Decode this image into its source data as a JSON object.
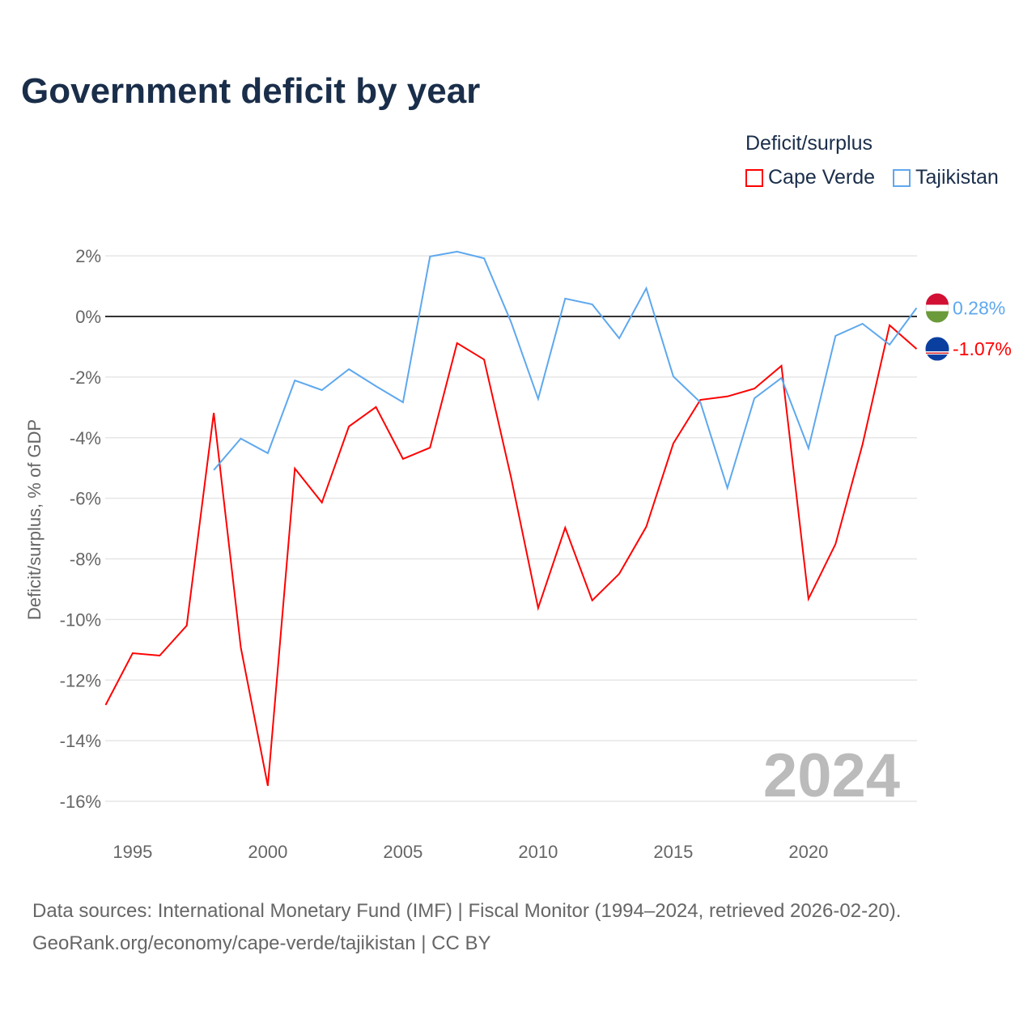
{
  "chart_data": {
    "type": "line",
    "title": "Government deficit by year",
    "ylabel": "Deficit/surplus, % of GDP",
    "xlabel": "",
    "legend_title": "Deficit/surplus",
    "ylim": [
      -16.5,
      2.5
    ],
    "xlim": [
      1994,
      2024
    ],
    "yticks": [
      2,
      0,
      -2,
      -4,
      -6,
      -8,
      -10,
      -12,
      -14,
      -16
    ],
    "ytick_labels": [
      "2%",
      "0%",
      "-2%",
      "-4%",
      "-6%",
      "-8%",
      "-10%",
      "-12%",
      "-14%",
      "-16%"
    ],
    "xticks": [
      1995,
      2000,
      2005,
      2010,
      2015,
      2020
    ],
    "xtick_labels": [
      "1995",
      "2000",
      "2005",
      "2010",
      "2015",
      "2020"
    ],
    "year_watermark": "2024",
    "series": [
      {
        "name": "Cape Verde",
        "color": "#ff0000",
        "end_label": "-1.07%",
        "start_year": 1994,
        "values": [
          -12.82,
          -11.11,
          -11.19,
          -10.2,
          -3.18,
          -10.92,
          -15.49,
          -5.02,
          -6.14,
          -3.63,
          -2.99,
          -4.7,
          -4.33,
          -0.88,
          -1.42,
          -5.32,
          -9.62,
          -6.97,
          -9.37,
          -8.49,
          -6.94,
          -4.19,
          -2.75,
          -2.64,
          -2.38,
          -1.63,
          -9.32,
          -7.51,
          -4.22,
          -0.29,
          -1.07
        ]
      },
      {
        "name": "Tajikistan",
        "color": "#5ea8ee",
        "end_label": "0.28%",
        "start_year": 1998,
        "values": [
          -5.07,
          -4.03,
          -4.51,
          -2.11,
          -2.43,
          -1.74,
          -2.3,
          -2.83,
          1.98,
          2.14,
          1.92,
          -0.19,
          -2.72,
          0.59,
          0.4,
          -0.72,
          0.93,
          -1.98,
          -2.83,
          -5.66,
          -2.7,
          -2.03,
          -4.35,
          -0.64,
          -0.24,
          -0.93,
          0.28
        ]
      }
    ]
  },
  "source_line1": "Data sources: International Monetary Fund (IMF) | Fiscal Monitor (1994–2024, retrieved 2026-02-20).",
  "source_line2": "GeoRank.org/economy/cape-verde/tajikistan | CC BY"
}
